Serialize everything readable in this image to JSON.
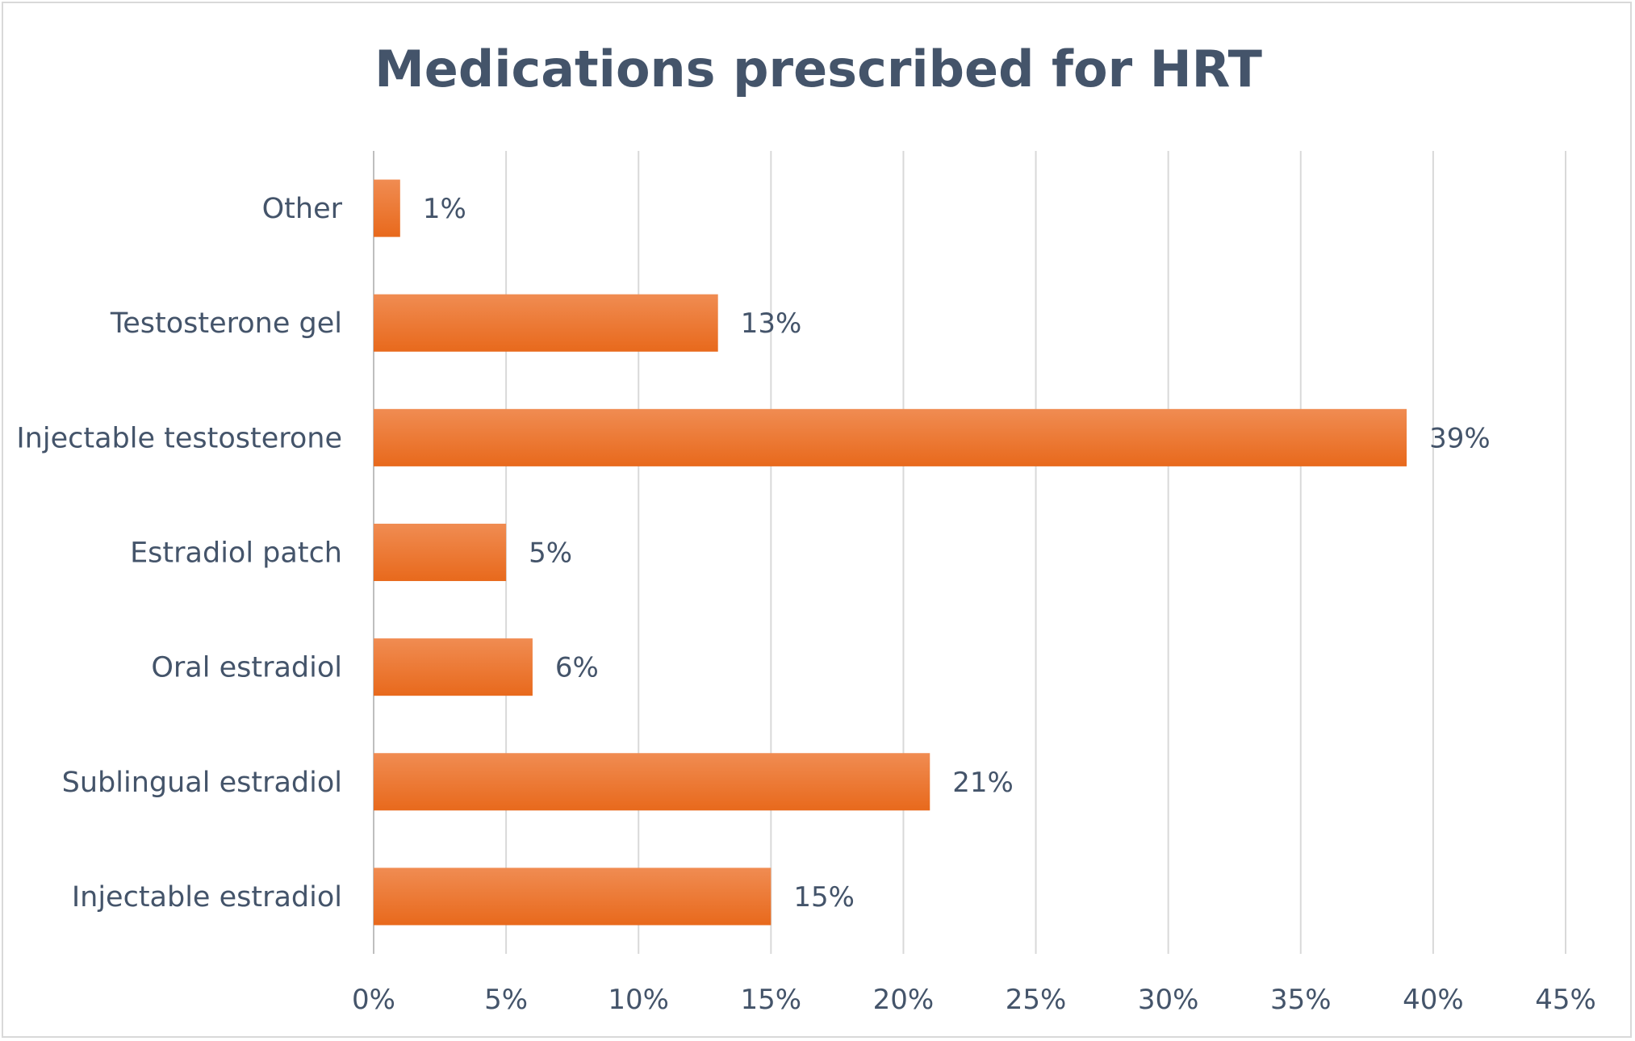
{
  "chart_data": {
    "type": "bar",
    "orientation": "horizontal",
    "title": "Medications prescribed for HRT",
    "xlabel": "",
    "ylabel": "",
    "categories": [
      "Other",
      "Testosterone gel",
      "Injectable testosterone",
      "Estradiol patch",
      "Oral estradiol",
      "Sublingual estradiol",
      "Injectable estradiol"
    ],
    "values": [
      1,
      13,
      39,
      5,
      6,
      21,
      15
    ],
    "data_labels": [
      "1%",
      "13%",
      "39%",
      "5%",
      "6%",
      "21%",
      "15%"
    ],
    "xlim": [
      0,
      45
    ],
    "ticks": [
      0,
      5,
      10,
      15,
      20,
      25,
      30,
      35,
      40,
      45
    ],
    "tick_labels": [
      "0%",
      "5%",
      "10%",
      "15%",
      "20%",
      "25%",
      "30%",
      "35%",
      "40%",
      "45%"
    ],
    "grid": "vertical",
    "legend": "none",
    "colors": {
      "bar_top": "#f08c52",
      "bar_bottom": "#e8691c",
      "text": "#44546a",
      "grid": "#d9d9d9"
    }
  }
}
